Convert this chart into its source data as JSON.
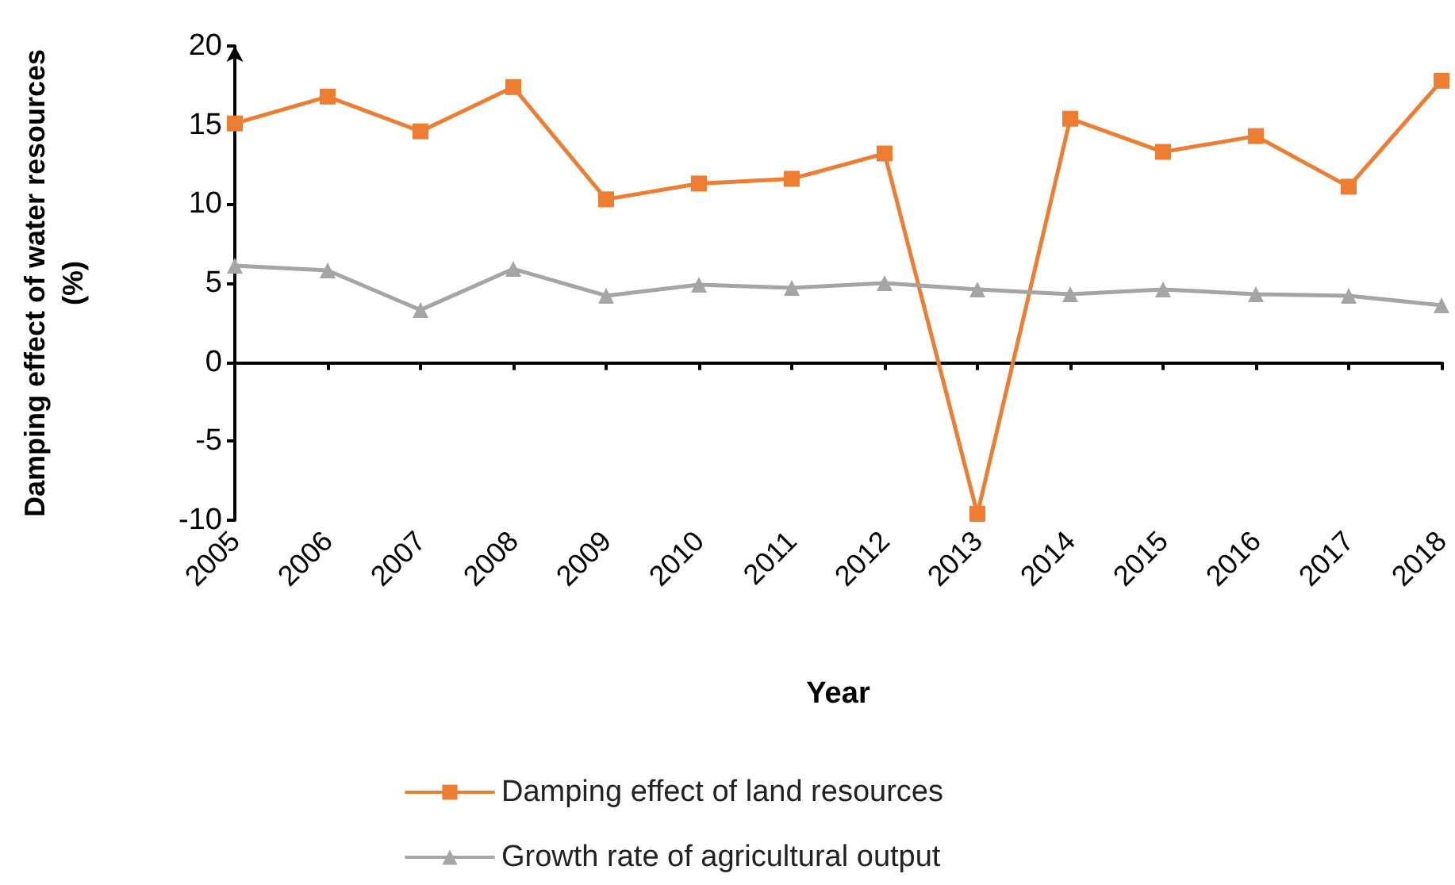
{
  "chart_data": {
    "type": "line",
    "xlabel": "Year",
    "ylabel": "Damping effect of water resources\n(%)",
    "categories": [
      "2005",
      "2006",
      "2007",
      "2008",
      "2009",
      "2010",
      "2011",
      "2012",
      "2013",
      "2014",
      "2015",
      "2016",
      "2017",
      "2018"
    ],
    "series": [
      {
        "name": "Damping effect of land resources",
        "color": "#ed7d31",
        "marker": "square",
        "values": [
          15.1,
          16.8,
          14.6,
          17.4,
          10.3,
          11.3,
          11.6,
          13.2,
          -9.6,
          15.4,
          13.3,
          14.3,
          11.1,
          17.8
        ]
      },
      {
        "name": "Growth rate of agricultural output",
        "color": "#a5a5a5",
        "marker": "triangle",
        "values": [
          6.1,
          5.8,
          3.3,
          5.9,
          4.2,
          4.9,
          4.7,
          5.0,
          4.6,
          4.3,
          4.6,
          4.3,
          4.2,
          3.6
        ]
      }
    ],
    "ylim": [
      -10,
      20
    ],
    "yticks": [
      -10,
      -5,
      0,
      5,
      10,
      15,
      20
    ],
    "legend": "bottom"
  }
}
